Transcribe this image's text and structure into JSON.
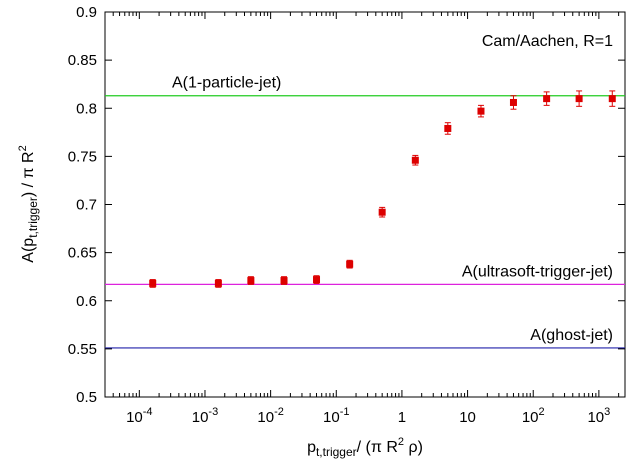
{
  "chart_data": {
    "type": "scatter",
    "title": "",
    "xscale": "log",
    "xlim": [
      3e-05,
      2500
    ],
    "ylim": [
      0.5,
      0.9
    ],
    "grid": false,
    "legend": "none",
    "xlabel": {
      "main": "p",
      "sub": "t,trigger",
      "rest": "/ (π R",
      "sup": "2",
      "tail": " ρ)"
    },
    "ylabel": {
      "main": "A(p",
      "sub": "t,trigger",
      "rest": ") / π R",
      "sup": "2"
    },
    "annotation": "Cam/Aachen, R=1",
    "y_ticks": [
      {
        "v": 0.5,
        "label": "0.5"
      },
      {
        "v": 0.55,
        "label": "0.55"
      },
      {
        "v": 0.6,
        "label": "0.6"
      },
      {
        "v": 0.65,
        "label": "0.65"
      },
      {
        "v": 0.7,
        "label": "0.7"
      },
      {
        "v": 0.75,
        "label": "0.75"
      },
      {
        "v": 0.8,
        "label": "0.8"
      },
      {
        "v": 0.85,
        "label": "0.85"
      },
      {
        "v": 0.9,
        "label": "0.9"
      }
    ],
    "x_ticks": [
      {
        "v": 0.0001,
        "base": "10",
        "exp": "-4"
      },
      {
        "v": 0.001,
        "base": "10",
        "exp": "-3"
      },
      {
        "v": 0.01,
        "base": "10",
        "exp": "-2"
      },
      {
        "v": 0.1,
        "base": "10",
        "exp": "-1"
      },
      {
        "v": 1,
        "base": "1",
        "exp": ""
      },
      {
        "v": 10,
        "base": "10",
        "exp": ""
      },
      {
        "v": 100,
        "base": "10",
        "exp": "2"
      },
      {
        "v": 1000,
        "base": "10",
        "exp": "3"
      }
    ],
    "reference_lines": [
      {
        "label": "A(1-particle-jet)",
        "y": 0.813,
        "color": "#22cc22"
      },
      {
        "label": "A(ultrasoft-trigger-jet)",
        "y": 0.617,
        "color": "#dd22dd"
      },
      {
        "label": "A(ghost-jet)",
        "y": 0.551,
        "color": "#2222aa"
      }
    ],
    "series": [
      {
        "color": "#dd0000",
        "points": [
          {
            "x": 0.00016,
            "y": 0.618,
            "err": 0.004
          },
          {
            "x": 0.0016,
            "y": 0.618,
            "err": 0.004
          },
          {
            "x": 0.005,
            "y": 0.621,
            "err": 0.004
          },
          {
            "x": 0.016,
            "y": 0.621,
            "err": 0.004
          },
          {
            "x": 0.05,
            "y": 0.622,
            "err": 0.004
          },
          {
            "x": 0.16,
            "y": 0.638,
            "err": 0.004
          },
          {
            "x": 0.5,
            "y": 0.692,
            "err": 0.005
          },
          {
            "x": 1.6,
            "y": 0.746,
            "err": 0.005
          },
          {
            "x": 5,
            "y": 0.779,
            "err": 0.006
          },
          {
            "x": 16,
            "y": 0.797,
            "err": 0.006
          },
          {
            "x": 50,
            "y": 0.806,
            "err": 0.007
          },
          {
            "x": 160,
            "y": 0.81,
            "err": 0.007
          },
          {
            "x": 500,
            "y": 0.81,
            "err": 0.008
          },
          {
            "x": 1600,
            "y": 0.81,
            "err": 0.008
          }
        ]
      }
    ]
  }
}
